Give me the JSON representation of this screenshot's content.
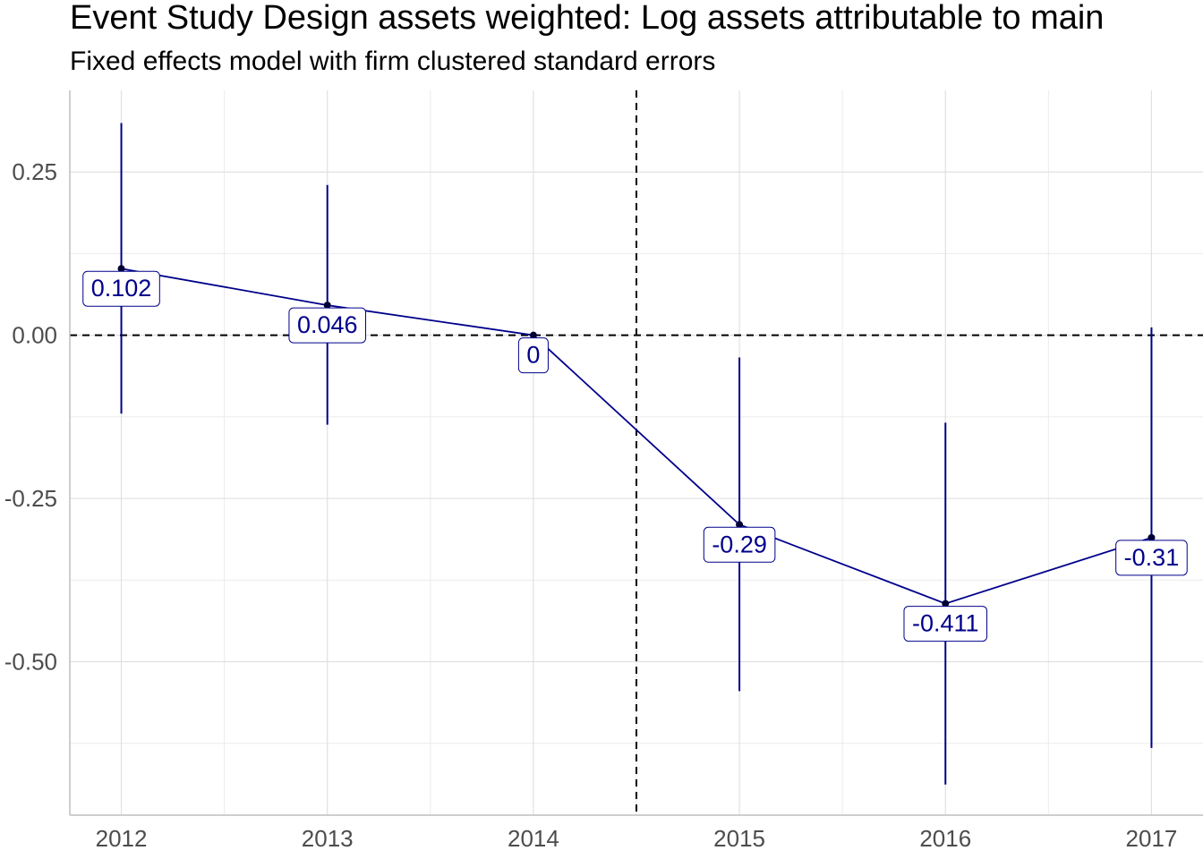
{
  "chart_data": {
    "type": "line",
    "title": "Event Study Design assets weighted: Log assets attributable to main",
    "subtitle": "Fixed effects model with firm clustered standard errors",
    "xlabel": "",
    "ylabel": "",
    "x": [
      2012,
      2013,
      2014,
      2015,
      2016,
      2017
    ],
    "tick_labels_x": [
      "2012",
      "2013",
      "2014",
      "2015",
      "2016",
      "2017"
    ],
    "tick_labels_y": [
      "0.25",
      "0.00",
      "-0.25",
      "-0.50"
    ],
    "yticks": [
      0.25,
      0.0,
      -0.25,
      -0.5
    ],
    "xlim": [
      2011.75,
      2017.25
    ],
    "ylim": [
      -0.735,
      0.375
    ],
    "series": [
      {
        "values": [
          0.102,
          0.046,
          0,
          -0.29,
          -0.411,
          -0.31
        ],
        "ci_low": [
          -0.12,
          -0.137,
          0,
          -0.545,
          -0.688,
          -0.632
        ],
        "ci_high": [
          0.325,
          0.23,
          0,
          -0.034,
          -0.134,
          0.012
        ],
        "labels": [
          "0.102",
          "0.046",
          "0",
          "-0.29",
          "-0.411",
          "-0.31"
        ]
      }
    ],
    "reference_lines": {
      "hline_y": 0,
      "vline_x": 2014.5,
      "style": "dashed"
    },
    "grid": true,
    "colors": {
      "series": "#00008b",
      "reference": "#000000",
      "grid": "#ebebeb",
      "axis_text": "#4d4d4d"
    }
  }
}
